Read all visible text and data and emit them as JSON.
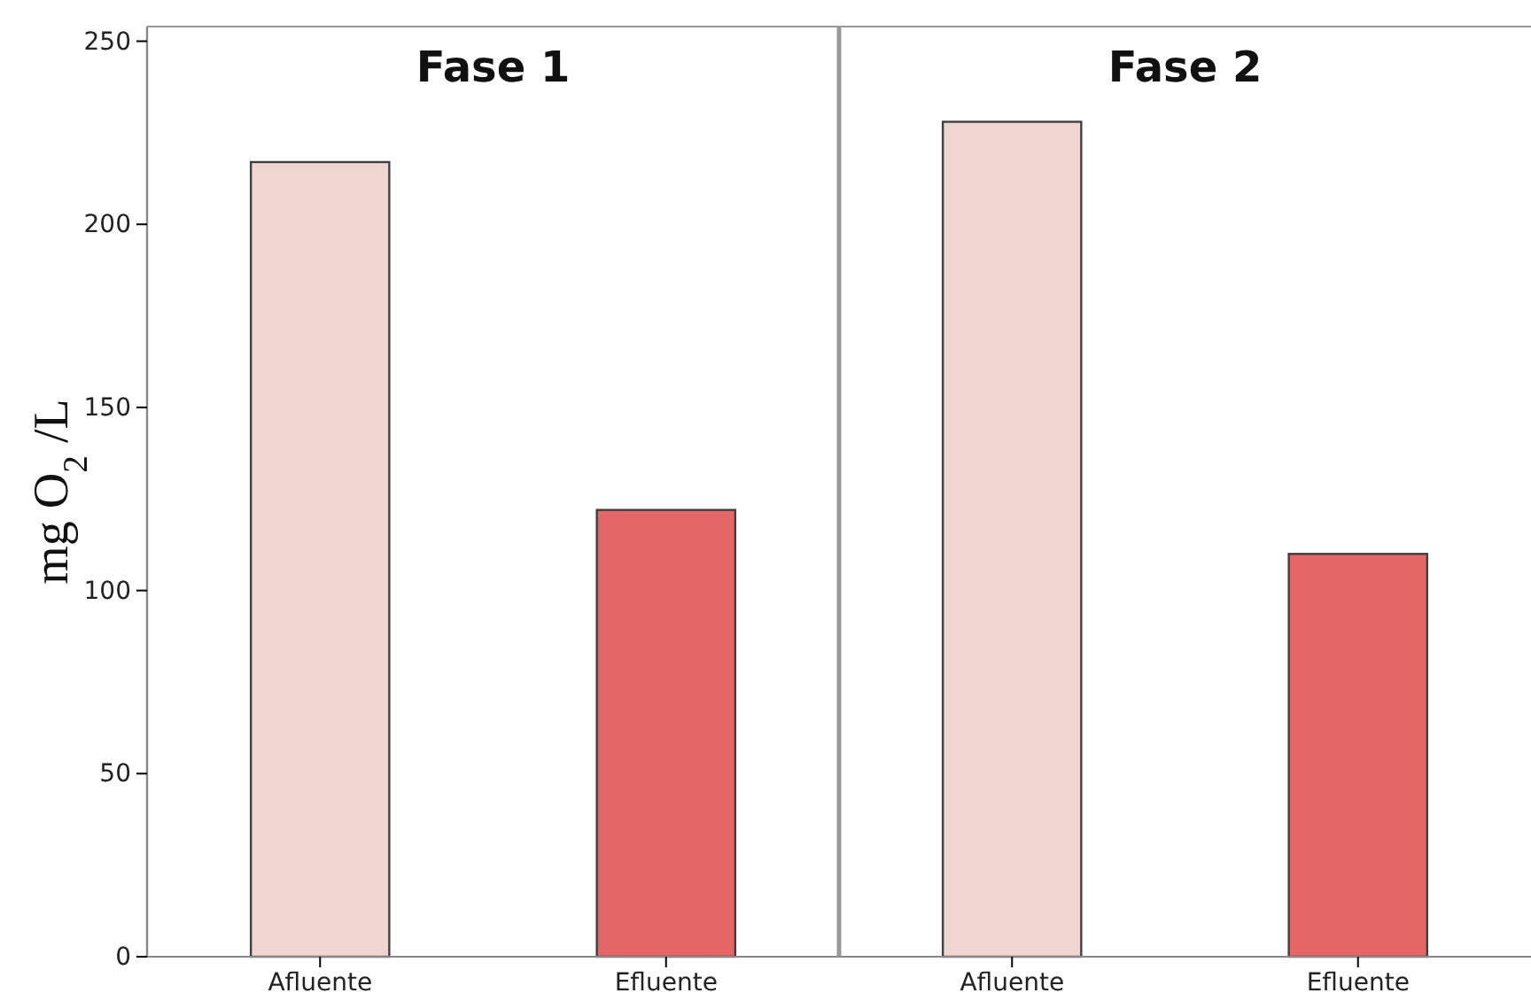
{
  "chart_data": [
    {
      "type": "bar",
      "title": "Fase 1",
      "ylabel": "mg O$_{2}$ /L",
      "categories": [
        "Afluente",
        "Efluente"
      ],
      "values": [
        217,
        122
      ],
      "colors": [
        "#efd6d0",
        "#e46666"
      ],
      "ylim": [
        0,
        254
      ],
      "yticks": [
        0,
        50,
        100,
        150,
        200,
        250
      ]
    },
    {
      "type": "bar",
      "title": "Fase 2",
      "categories": [
        "Afluente",
        "Efluente"
      ],
      "values": [
        228,
        110
      ],
      "colors": [
        "#efd6d0",
        "#e46666"
      ],
      "ylim": [
        0,
        254
      ],
      "yticks": [
        0,
        50,
        100,
        150,
        200,
        250
      ],
      "tick_labels": "x"
    }
  ]
}
